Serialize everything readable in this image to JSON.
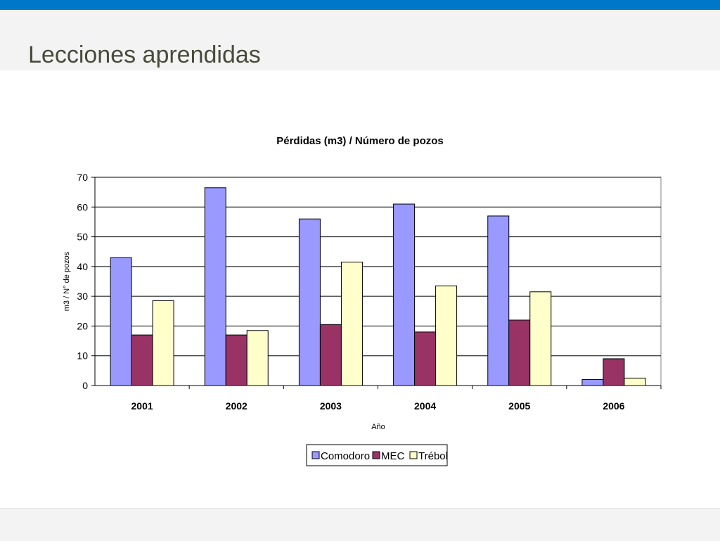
{
  "slide": {
    "title": "Lecciones aprendidas"
  },
  "colors": {
    "top_bar": "#0077c8",
    "band": "#f3f3f3",
    "title_text": "#4a4a3a"
  },
  "chart_data": {
    "type": "bar",
    "title": "Pérdidas (m3) / Número de pozos",
    "xlabel": "Año",
    "ylabel": "m3 / N° de pozos",
    "categories": [
      "2001",
      "2002",
      "2003",
      "2004",
      "2005",
      "2006"
    ],
    "ylim": [
      0,
      70
    ],
    "yticks": [
      0,
      10,
      20,
      30,
      40,
      50,
      60,
      70
    ],
    "grid": true,
    "legend": "bottom-center",
    "series": [
      {
        "name": "Comodoro",
        "color": "#9999ff",
        "values": [
          43,
          66.5,
          56,
          61,
          57,
          2
        ]
      },
      {
        "name": "MEC",
        "color": "#993366",
        "values": [
          17,
          17,
          20.5,
          18,
          22,
          9
        ]
      },
      {
        "name": "Trébol",
        "color": "#ffffcc",
        "values": [
          28.5,
          18.5,
          41.5,
          33.5,
          31.5,
          2.5
        ]
      }
    ]
  }
}
